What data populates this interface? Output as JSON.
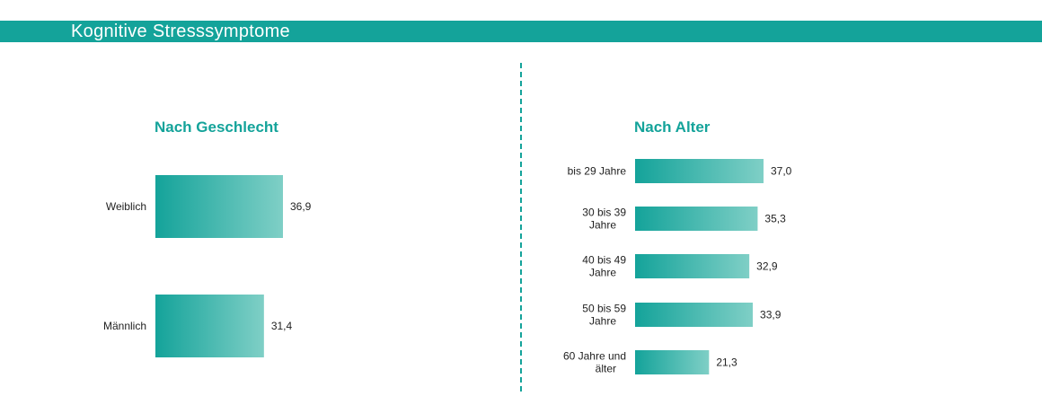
{
  "header": {
    "title": "Kognitive Stresssymptome"
  },
  "colors": {
    "accent": "#14a39a",
    "bar_start": "#14a39a",
    "bar_end": "#7fcfc6"
  },
  "chart_data": [
    {
      "type": "bar",
      "orientation": "horizontal",
      "title": "Nach Geschlecht",
      "categories": [
        [
          "Weiblich"
        ],
        [
          "Männlich"
        ]
      ],
      "values": [
        36.9,
        31.4
      ],
      "value_labels": [
        "36,9",
        "31,4"
      ]
    },
    {
      "type": "bar",
      "orientation": "horizontal",
      "title": "Nach Alter",
      "categories": [
        [
          "bis 29 Jahre"
        ],
        [
          "30 bis 39",
          "Jahre"
        ],
        [
          "40 bis 49",
          "Jahre"
        ],
        [
          "50 bis 59",
          "Jahre"
        ],
        [
          "60 Jahre und",
          "älter"
        ]
      ],
      "values": [
        37.0,
        35.3,
        32.9,
        33.9,
        21.3
      ],
      "value_labels": [
        "37,0",
        "35,3",
        "32,9",
        "33,9",
        "21,3"
      ]
    }
  ]
}
